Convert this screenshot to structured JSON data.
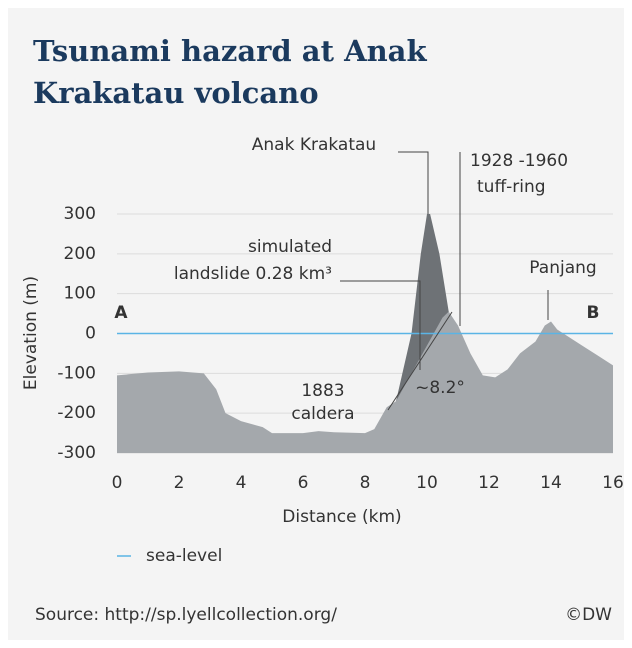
{
  "chart_data": {
    "type": "area",
    "title": "Tsunami hazard at Anak Krakatau volcano",
    "x_label": "Distance (km)",
    "y_label": "Elevation (m)",
    "xlim": [
      0,
      16
    ],
    "xticks": [
      0,
      2,
      4,
      6,
      8,
      10,
      12,
      14,
      16
    ],
    "ylim": [
      -300,
      300
    ],
    "yticks": [
      -300,
      -200,
      -100,
      0,
      100,
      200,
      300
    ],
    "grid": true,
    "series": [
      {
        "color": "#6e7276",
        "x": [
          8.5,
          9,
          9.5,
          9.8,
          10,
          10.1,
          10.4,
          10.7
        ],
        "values": [
          -250,
          -170,
          0,
          200,
          300,
          300,
          200,
          55
        ]
      },
      {
        "color": "#a4a8ac",
        "x": [
          0,
          1,
          2,
          2.8,
          3.2,
          3.5,
          4,
          4.7,
          5,
          6,
          6.5,
          7,
          8,
          8.3,
          8.7,
          9,
          9.5,
          10,
          10.5,
          10.7,
          11,
          11.4,
          11.8,
          12.2,
          12.6,
          13,
          13.5,
          13.8,
          14,
          14.2,
          14.6,
          15,
          15.5,
          16
        ],
        "values": [
          -105,
          -98,
          -95,
          -100,
          -140,
          -200,
          -220,
          -235,
          -250,
          -250,
          -245,
          -248,
          -250,
          -240,
          -185,
          -170,
          -100,
          -30,
          40,
          55,
          20,
          -50,
          -105,
          -110,
          -90,
          -50,
          -20,
          20,
          30,
          10,
          -10,
          -30,
          -55,
          -80
        ]
      }
    ],
    "reference_line": {
      "value": 0,
      "label": "sea-level",
      "color": "#5ab4e5"
    },
    "annotations": [
      {
        "text": "Anak Krakatau"
      },
      {
        "lines": [
          "1928 -1960",
          "tuff-ring"
        ]
      },
      {
        "lines": [
          "simulated",
          "landslide 0.28 km³"
        ]
      },
      {
        "text": "Panjang"
      },
      {
        "lines": [
          "1883",
          "caldera"
        ]
      },
      {
        "text": "~8.2°"
      },
      {
        "text": "A"
      },
      {
        "text": "B"
      }
    ],
    "source": "Source: http://sp.lyellcollection.org/",
    "credit": "©DW"
  }
}
